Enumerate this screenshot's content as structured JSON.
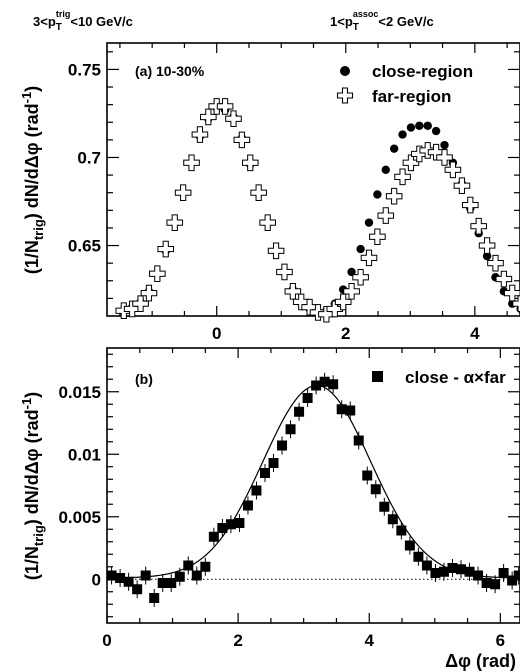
{
  "header": {
    "left": {
      "pre": "3<p",
      "sub": "T",
      "sup": "trig",
      "post": "<10 GeV/c"
    },
    "right": {
      "pre": "1<p",
      "sub": "T",
      "sup": "assoc",
      "post": "<2 GeV/c"
    }
  },
  "chart_data": [
    {
      "type": "scatter",
      "panel_label": "(a) 10-30%",
      "ylabel": {
        "pre": "(1/N",
        "sub": "trig",
        "post": ") dN/dΔφ (rad",
        "sup": "-1",
        "close": ")"
      },
      "xlim": [
        -1.7,
        4.7
      ],
      "ylim": [
        0.61,
        0.765
      ],
      "x_ticks": [
        0,
        2,
        4
      ],
      "y_ticks": [
        0.65,
        0.7,
        0.75
      ],
      "y_tick_labels": [
        "0.65",
        "0.7",
        "0.75"
      ],
      "legend_position": "top-right",
      "series": [
        {
          "name": "close-region",
          "marker": "filled-circle",
          "x": [
            -1.44,
            -1.31,
            -1.18,
            -1.05,
            -0.92,
            -0.79,
            -0.65,
            -0.52,
            -0.39,
            -0.26,
            -0.13,
            0.0,
            0.13,
            0.26,
            0.39,
            0.52,
            0.65,
            0.79,
            0.92,
            1.05,
            1.18,
            1.31,
            1.44,
            1.57,
            1.7,
            1.83,
            1.96,
            2.09,
            2.23,
            2.36,
            2.49,
            2.62,
            2.75,
            2.88,
            3.01,
            3.14,
            3.27,
            3.4,
            3.53,
            3.66,
            3.8,
            3.93,
            4.06,
            4.19,
            4.32,
            4.45,
            4.58,
            4.71
          ],
          "y": [
            0.613,
            0.615,
            0.618,
            0.624,
            0.634,
            0.647,
            0.663,
            0.68,
            0.697,
            0.712,
            0.722,
            0.728,
            0.727,
            0.723,
            0.711,
            0.696,
            0.68,
            0.663,
            0.647,
            0.635,
            0.625,
            0.618,
            0.614,
            0.612,
            0.613,
            0.617,
            0.625,
            0.635,
            0.648,
            0.663,
            0.679,
            0.693,
            0.705,
            0.713,
            0.717,
            0.718,
            0.718,
            0.715,
            0.707,
            0.697,
            0.685,
            0.671,
            0.657,
            0.644,
            0.632,
            0.624,
            0.617,
            0.614
          ]
        },
        {
          "name": "far-region",
          "marker": "open-cross",
          "x": [
            -1.44,
            -1.31,
            -1.18,
            -1.05,
            -0.92,
            -0.79,
            -0.65,
            -0.52,
            -0.39,
            -0.26,
            -0.13,
            0.0,
            0.13,
            0.26,
            0.39,
            0.52,
            0.65,
            0.79,
            0.92,
            1.05,
            1.18,
            1.31,
            1.44,
            1.57,
            1.7,
            1.83,
            1.96,
            2.09,
            2.23,
            2.36,
            2.49,
            2.62,
            2.75,
            2.88,
            3.01,
            3.14,
            3.27,
            3.4,
            3.53,
            3.66,
            3.8,
            3.93,
            4.06,
            4.19,
            4.32,
            4.45,
            4.58,
            4.71
          ],
          "y": [
            0.613,
            0.614,
            0.617,
            0.623,
            0.634,
            0.648,
            0.663,
            0.68,
            0.697,
            0.713,
            0.723,
            0.729,
            0.729,
            0.722,
            0.71,
            0.697,
            0.68,
            0.663,
            0.647,
            0.635,
            0.624,
            0.618,
            0.615,
            0.612,
            0.611,
            0.614,
            0.618,
            0.624,
            0.632,
            0.643,
            0.655,
            0.667,
            0.678,
            0.689,
            0.697,
            0.702,
            0.704,
            0.703,
            0.7,
            0.693,
            0.684,
            0.673,
            0.661,
            0.65,
            0.64,
            0.631,
            0.623,
            0.617
          ]
        }
      ]
    },
    {
      "type": "scatter",
      "panel_label": "(b)",
      "ylabel": {
        "pre": "(1/N",
        "sub": "trig",
        "post": ") dN/dΔφ (rad",
        "sup": "-1",
        "close": ")"
      },
      "xlabel": "Δφ (rad)",
      "xlim": [
        0,
        6.3
      ],
      "ylim": [
        -0.0035,
        0.0185
      ],
      "x_ticks": [
        0,
        2,
        4,
        6
      ],
      "y_ticks": [
        0,
        0.005,
        0.01,
        0.015
      ],
      "y_tick_labels": [
        "0",
        "0.005",
        "0.01",
        "0.015"
      ],
      "legend_position": "top-right",
      "series": [
        {
          "name": "close - α×far",
          "marker": "filled-square",
          "x": [
            0.07,
            0.2,
            0.33,
            0.46,
            0.59,
            0.72,
            0.85,
            0.98,
            1.11,
            1.24,
            1.37,
            1.5,
            1.63,
            1.76,
            1.89,
            2.02,
            2.15,
            2.28,
            2.41,
            2.54,
            2.67,
            2.8,
            2.93,
            3.06,
            3.19,
            3.32,
            3.45,
            3.58,
            3.71,
            3.84,
            3.97,
            4.1,
            4.23,
            4.36,
            4.49,
            4.62,
            4.75,
            4.88,
            5.01,
            5.14,
            5.27,
            5.4,
            5.53,
            5.66,
            5.79,
            5.92,
            6.05,
            6.18,
            6.28
          ],
          "y": [
            0.0003,
            0.0001,
            -0.0002,
            -0.0008,
            0.0003,
            -0.0015,
            -0.0003,
            -0.0003,
            0.0002,
            0.0011,
            0.0003,
            0.001,
            0.0034,
            0.0041,
            0.0044,
            0.0045,
            0.0059,
            0.0071,
            0.0085,
            0.0093,
            0.0107,
            0.012,
            0.0134,
            0.0145,
            0.0155,
            0.0158,
            0.0156,
            0.0136,
            0.0135,
            0.0111,
            0.0083,
            0.0072,
            0.0058,
            0.0048,
            0.0039,
            0.0027,
            0.0018,
            0.0011,
            0.0005,
            0.0006,
            0.0009,
            0.0008,
            0.0006,
            0.0003,
            -0.0003,
            -0.0004,
            0.0005,
            -0.0001,
            0.0003
          ]
        }
      ],
      "fit_curve": {
        "shape": "gaussian",
        "baseline": 0.0001,
        "amplitude": 0.0154,
        "center": 3.2,
        "sigma": 0.82
      },
      "reference_line": {
        "y": 0,
        "style": "dotted"
      }
    }
  ]
}
